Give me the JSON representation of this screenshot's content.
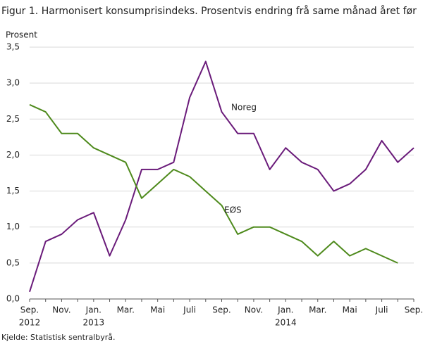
{
  "chart_data": {
    "type": "line",
    "title": "Figur 1.  Harmonisert konsumprisindeks. Prosentvis endring frå same månad året før",
    "y_label": "Prosent",
    "source": "Kjelde: Statistisk sentralbyrå.",
    "categories": [
      "Sep.",
      null,
      "Nov.",
      null,
      "Jan.",
      null,
      "Mar.",
      null,
      "Mai",
      null,
      "Juli",
      null,
      "Sep.",
      null,
      "Nov.",
      null,
      "Jan.",
      null,
      "Mar.",
      null,
      "Mai",
      null,
      "Juli",
      null,
      "Sep."
    ],
    "category_years": [
      "2012",
      null,
      null,
      null,
      "2013",
      null,
      null,
      null,
      null,
      null,
      null,
      null,
      null,
      null,
      null,
      null,
      "2014",
      null,
      null,
      null,
      null,
      null,
      null,
      null,
      null
    ],
    "series": [
      {
        "name": "Noreg",
        "color": "#6a1b7a",
        "values": [
          0.1,
          0.8,
          0.9,
          1.1,
          1.2,
          0.6,
          1.1,
          1.8,
          1.8,
          1.9,
          2.8,
          3.3,
          2.6,
          2.3,
          2.3,
          1.8,
          2.1,
          1.9,
          1.8,
          1.5,
          1.6,
          1.8,
          2.2,
          1.9,
          2.1
        ]
      },
      {
        "name": "EØS",
        "color": "#4e8a1c",
        "values": [
          2.7,
          2.6,
          2.3,
          2.3,
          2.1,
          2.0,
          1.9,
          1.4,
          1.6,
          1.8,
          1.7,
          1.5,
          1.3,
          0.9,
          1.0,
          1.0,
          0.9,
          0.8,
          0.6,
          0.8,
          0.6,
          0.7,
          0.6,
          0.5,
          null
        ]
      }
    ],
    "ylim": [
      0,
      3.5
    ],
    "yticks": [
      {
        "value": 0,
        "label": "0,0"
      },
      {
        "value": 0.5,
        "label": "0,5"
      },
      {
        "value": 1,
        "label": "1,0"
      },
      {
        "value": 1.5,
        "label": "1,5"
      },
      {
        "value": 2,
        "label": "2,0"
      },
      {
        "value": 2.5,
        "label": "2,5"
      },
      {
        "value": 3,
        "label": "3,0"
      },
      {
        "value": 3.5,
        "label": "3,5"
      }
    ],
    "grid": true
  }
}
